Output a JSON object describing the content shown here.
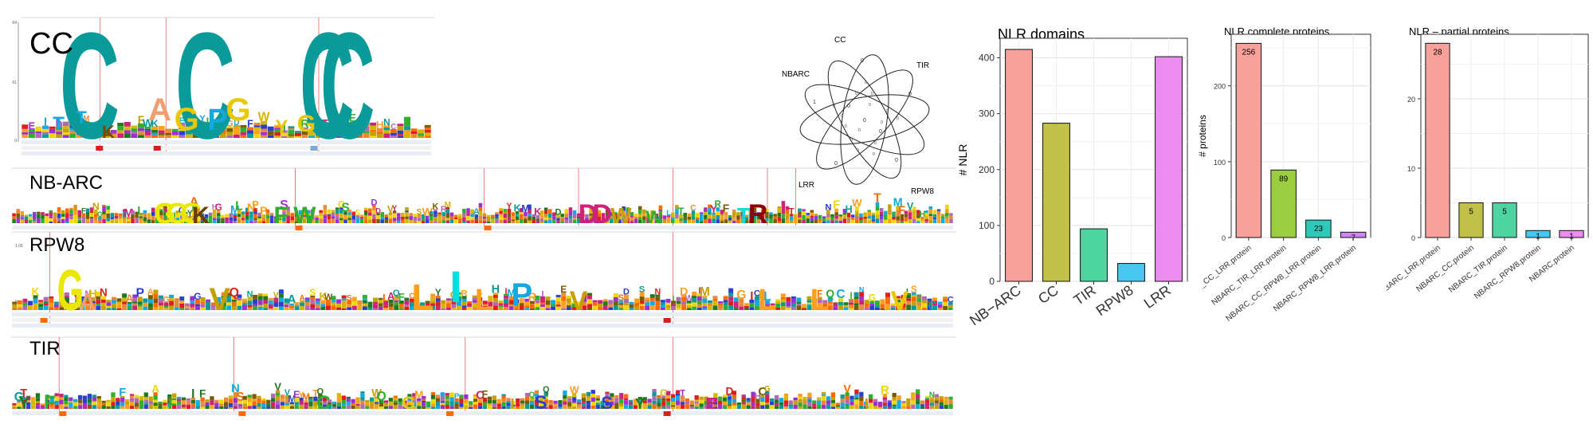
{
  "logos": [
    {
      "label": "CC",
      "name": "cc"
    },
    {
      "label": "NB-ARC",
      "name": "nbarc"
    },
    {
      "label": "RPW8",
      "name": "rpw8"
    },
    {
      "label": "TIR",
      "name": "tir"
    }
  ],
  "logo_axis": {
    "cc_ticks": [
      "3.64",
      "2.61",
      "0"
    ],
    "rpw8_ticks": [
      "1.06",
      "0"
    ]
  },
  "venn": {
    "sets": [
      "CC",
      "TIR",
      "RPW8",
      "LRR",
      "NBARC"
    ],
    "region_values": [
      "0",
      "0",
      "0",
      "0",
      "1",
      "0",
      "0",
      "0"
    ]
  },
  "chart_data": [
    {
      "type": "bar",
      "title": "NLR domains",
      "ylabel": "# NLR",
      "xlabel": "",
      "categories": [
        "NB−ARC",
        "CC",
        "TIR",
        "RPW8",
        "LRR"
      ],
      "values": [
        415,
        283,
        94,
        32,
        402
      ],
      "colors": [
        "#f8a09a",
        "#c0c04a",
        "#4ed4a0",
        "#48c8f0",
        "#ec8cf0"
      ],
      "ylim": [
        0,
        435
      ],
      "yticks": [
        0,
        100,
        200,
        300,
        400
      ],
      "grid": true
    },
    {
      "type": "bar",
      "title": "NLR complete proteins",
      "ylabel": "# proteins",
      "xlabel": "",
      "categories": [
        "NBARC_CC_LRR.protein",
        "NBARC_TIR_LRR.protein",
        "NBARC_CC_RPW8_LRR.protein",
        "NBARC_RPW8_LRR.protein"
      ],
      "category_labels": [
        "_CC_LRR.protein",
        "NBARC_TIR_LRR.protein",
        "NBARC_CC_RPW8_LRR.protein",
        "NBARC_RPW8_LRR.protein"
      ],
      "values": [
        256,
        89,
        23,
        7
      ],
      "data_labels": [
        "256",
        "89",
        "23",
        "7"
      ],
      "colors": [
        "#f8a09a",
        "#9ccc40",
        "#30c8b8",
        "#cc88f0"
      ],
      "ylim": [
        0,
        268
      ],
      "yticks": [
        0,
        100,
        200
      ],
      "grid": true
    },
    {
      "type": "bar",
      "title": "NLR – partial proteins",
      "ylabel": "",
      "xlabel": "",
      "categories": [
        "NBARC_LRR.protein",
        "NBARC_CC.protein",
        "NBARC_TIR.protein",
        "NBARC_RPW8.protein",
        "NBARC.protein"
      ],
      "values": [
        28,
        5,
        5,
        1,
        1
      ],
      "data_labels": [
        "28",
        "5",
        "5",
        "1",
        "1"
      ],
      "colors": [
        "#f8a09a",
        "#c0c04a",
        "#4ed4a0",
        "#48c8f0",
        "#ec8cf0"
      ],
      "ylim": [
        0,
        29.3
      ],
      "yticks": [
        0,
        10,
        20
      ],
      "grid": true
    }
  ]
}
